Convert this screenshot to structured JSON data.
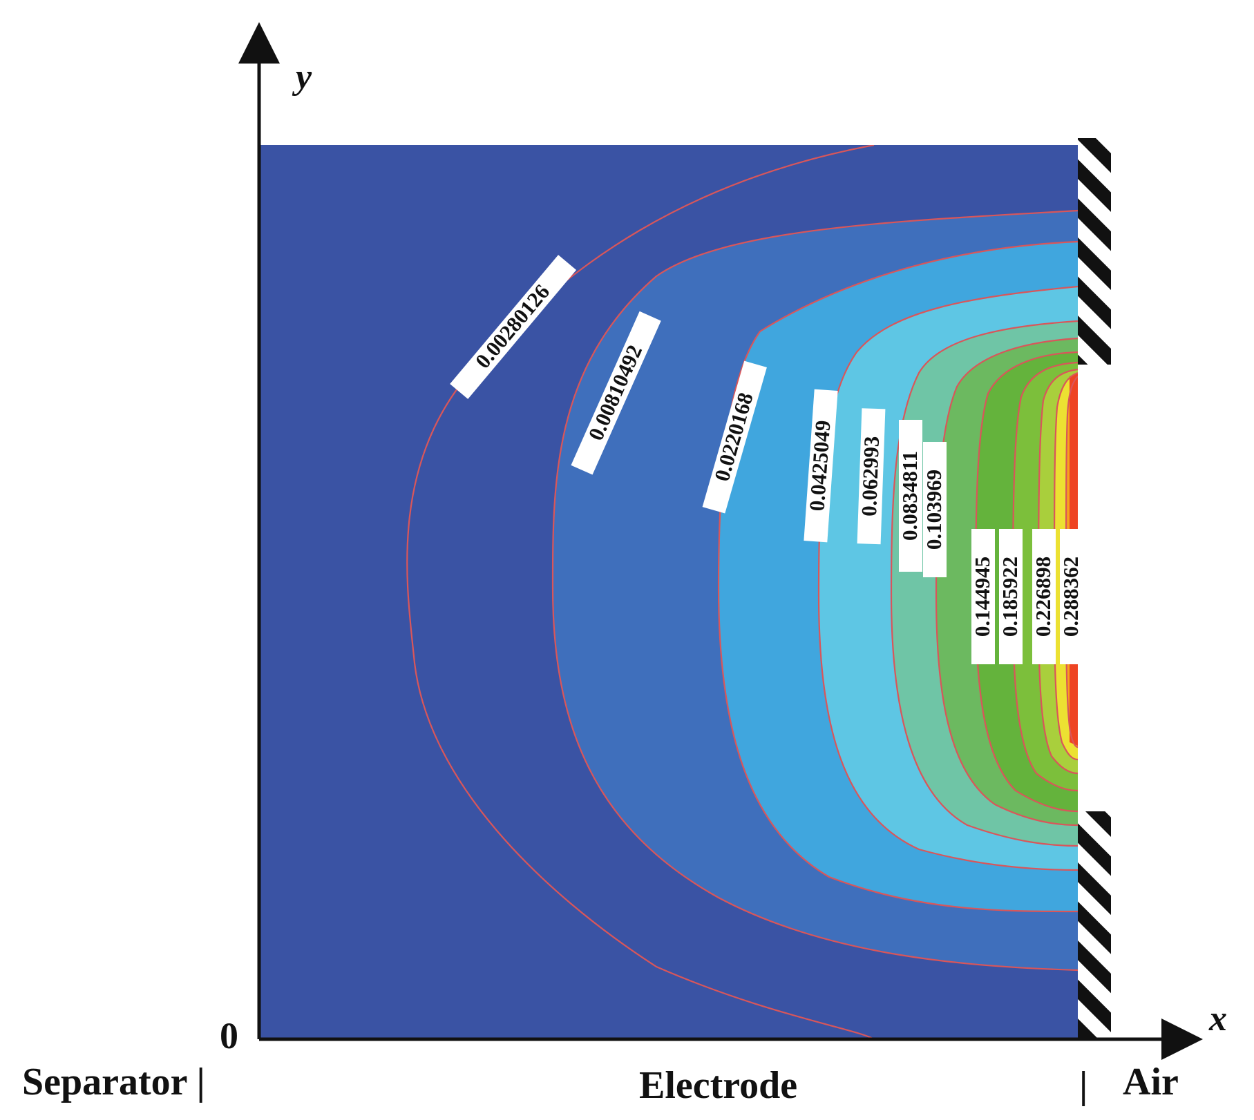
{
  "axes": {
    "y_label": "y",
    "x_label": "x",
    "origin_label": "0"
  },
  "regions": {
    "separator": "Separator |",
    "electrode": "Electrode",
    "air_divider": "|",
    "air": "Air"
  },
  "colors": {
    "background_fill": "#3a53a4",
    "contour_line": "#d9565a",
    "hatch": "#111111",
    "band_colors": [
      "#3a53a4",
      "#3f6fbc",
      "#40a6de",
      "#5ec6e4",
      "#6fc5a6",
      "#6cb960",
      "#64b33c",
      "#7cbf3b",
      "#a9cf3c",
      "#ece132",
      "#f5a21e",
      "#ee4423"
    ]
  },
  "contour_labels": [
    {
      "name": "contour-label-1",
      "text": "0.00280126"
    },
    {
      "name": "contour-label-2",
      "text": "0.00810492"
    },
    {
      "name": "contour-label-3",
      "text": "0.0220168"
    },
    {
      "name": "contour-label-4",
      "text": "0.0425049"
    },
    {
      "name": "contour-label-5",
      "text": "0.062993"
    },
    {
      "name": "contour-label-6",
      "text": "0.0834811"
    },
    {
      "name": "contour-label-7",
      "text": "0.103969"
    },
    {
      "name": "contour-label-8",
      "text": "0.144945"
    },
    {
      "name": "contour-label-9",
      "text": "0.185922"
    },
    {
      "name": "contour-label-10",
      "text": "0.226898"
    },
    {
      "name": "contour-label-11",
      "text": "0.288362"
    }
  ]
}
